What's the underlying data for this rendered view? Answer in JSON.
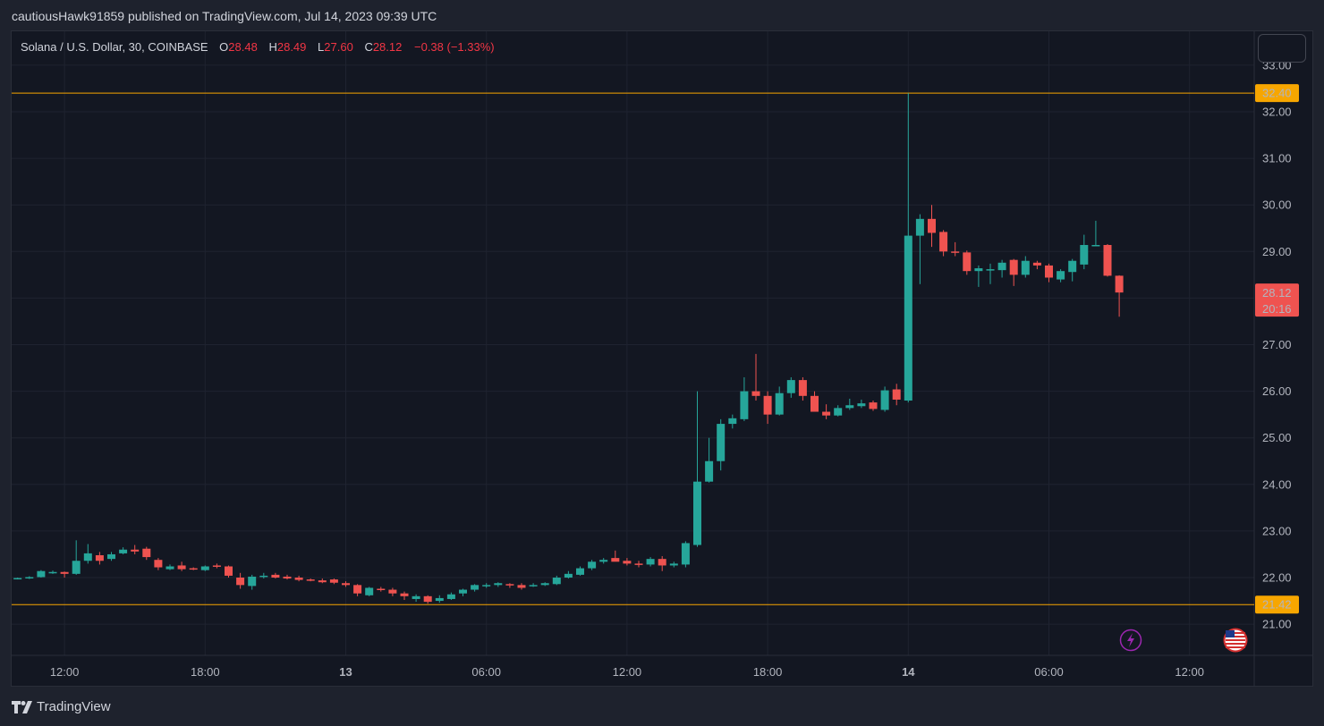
{
  "header": {
    "publisher_line": "cautiousHawk91859 published on TradingView.com, Jul 14, 2023 09:39 UTC"
  },
  "legend": {
    "symbol": "Solana / U.S. Dollar, 30, COINBASE",
    "o_label": "O",
    "o_value": "28.48",
    "h_label": "H",
    "h_value": "28.49",
    "l_label": "L",
    "l_value": "27.60",
    "c_label": "C",
    "c_value": "28.12",
    "change": "−0.38 (−1.33%)"
  },
  "footer": {
    "brand": "TradingView"
  },
  "colors": {
    "up": "#26a69a",
    "down": "#ef5350",
    "hline": "#f7a600",
    "background": "#131722",
    "grid": "#1f2330"
  },
  "icons": [
    "lightning-icon",
    "us-flag-icon",
    "tradingview-logo-icon"
  ],
  "chart_data": {
    "type": "candlestick",
    "interval": "30",
    "ylim": [
      20.3,
      33.3
    ],
    "y_ticks": [
      "21.00",
      "22.00",
      "23.00",
      "24.00",
      "25.00",
      "26.00",
      "27.00",
      "28.00",
      "29.00",
      "30.00",
      "31.00",
      "32.00",
      "33.00"
    ],
    "x_ticks": [
      {
        "bar": 4,
        "label": "12:00",
        "bold": false
      },
      {
        "bar": 16,
        "label": "18:00",
        "bold": false
      },
      {
        "bar": 28,
        "label": "13",
        "bold": true
      },
      {
        "bar": 40,
        "label": "06:00",
        "bold": false
      },
      {
        "bar": 52,
        "label": "12:00",
        "bold": false
      },
      {
        "bar": 64,
        "label": "18:00",
        "bold": false
      },
      {
        "bar": 76,
        "label": "14",
        "bold": true
      },
      {
        "bar": 88,
        "label": "06:00",
        "bold": false
      },
      {
        "bar": 100,
        "label": "12:00",
        "bold": false
      }
    ],
    "horizontal_lines": [
      {
        "value": 32.4,
        "label": "32.40"
      },
      {
        "value": 21.42,
        "label": 21.42
      }
    ],
    "last_price": {
      "value": 28.12,
      "label": "28.12",
      "countdown": "20:16"
    },
    "candles": [
      [
        21.98,
        22.0,
        21.96,
        21.99
      ],
      [
        21.99,
        22.03,
        21.97,
        22.01
      ],
      [
        22.01,
        22.16,
        22.0,
        22.14
      ],
      [
        22.1,
        22.15,
        22.08,
        22.12
      ],
      [
        22.12,
        22.13,
        22.0,
        22.08
      ],
      [
        22.08,
        22.8,
        22.06,
        22.36
      ],
      [
        22.36,
        22.72,
        22.3,
        22.52
      ],
      [
        22.48,
        22.55,
        22.28,
        22.36
      ],
      [
        22.4,
        22.55,
        22.36,
        22.5
      ],
      [
        22.52,
        22.65,
        22.5,
        22.6
      ],
      [
        22.6,
        22.7,
        22.5,
        22.56
      ],
      [
        22.62,
        22.66,
        22.38,
        22.44
      ],
      [
        22.38,
        22.42,
        22.16,
        22.22
      ],
      [
        22.18,
        22.28,
        22.16,
        22.24
      ],
      [
        22.26,
        22.34,
        22.14,
        22.18
      ],
      [
        22.2,
        22.22,
        22.16,
        22.18
      ],
      [
        22.16,
        22.26,
        22.14,
        22.24
      ],
      [
        22.26,
        22.3,
        22.2,
        22.24
      ],
      [
        22.24,
        22.26,
        22.0,
        22.04
      ],
      [
        22.0,
        22.1,
        21.76,
        21.84
      ],
      [
        21.82,
        22.06,
        21.74,
        22.02
      ],
      [
        22.02,
        22.1,
        21.98,
        22.04
      ],
      [
        22.06,
        22.1,
        21.98,
        22.0
      ],
      [
        22.02,
        22.06,
        21.96,
        21.98
      ],
      [
        22.0,
        22.04,
        21.92,
        21.95
      ],
      [
        21.96,
        21.98,
        21.92,
        21.94
      ],
      [
        21.94,
        21.98,
        21.88,
        21.9
      ],
      [
        21.96,
        21.98,
        21.86,
        21.89
      ],
      [
        21.88,
        21.92,
        21.8,
        21.84
      ],
      [
        21.84,
        21.86,
        21.6,
        21.66
      ],
      [
        21.62,
        21.8,
        21.6,
        21.78
      ],
      [
        21.76,
        21.8,
        21.7,
        21.74
      ],
      [
        21.74,
        21.78,
        21.6,
        21.66
      ],
      [
        21.66,
        21.7,
        21.52,
        21.6
      ],
      [
        21.54,
        21.64,
        21.48,
        21.6
      ],
      [
        21.6,
        21.62,
        21.44,
        21.48
      ],
      [
        21.5,
        21.62,
        21.46,
        21.56
      ],
      [
        21.54,
        21.68,
        21.52,
        21.64
      ],
      [
        21.66,
        21.76,
        21.6,
        21.74
      ],
      [
        21.74,
        21.86,
        21.7,
        21.84
      ],
      [
        21.82,
        21.88,
        21.78,
        21.84
      ],
      [
        21.84,
        21.9,
        21.8,
        21.88
      ],
      [
        21.86,
        21.88,
        21.78,
        21.84
      ],
      [
        21.84,
        21.88,
        21.74,
        21.78
      ],
      [
        21.82,
        21.88,
        21.8,
        21.84
      ],
      [
        21.84,
        21.9,
        21.82,
        21.88
      ],
      [
        21.86,
        22.04,
        21.84,
        22.0
      ],
      [
        22.0,
        22.14,
        21.98,
        22.08
      ],
      [
        22.06,
        22.24,
        22.04,
        22.2
      ],
      [
        22.2,
        22.38,
        22.16,
        22.34
      ],
      [
        22.34,
        22.42,
        22.3,
        22.38
      ],
      [
        22.42,
        22.58,
        22.36,
        22.34
      ],
      [
        22.36,
        22.42,
        22.26,
        22.3
      ],
      [
        22.3,
        22.36,
        22.22,
        22.28
      ],
      [
        22.28,
        22.44,
        22.24,
        22.4
      ],
      [
        22.4,
        22.46,
        22.14,
        22.26
      ],
      [
        22.26,
        22.34,
        22.22,
        22.3
      ],
      [
        22.28,
        22.78,
        22.22,
        22.74
      ],
      [
        22.7,
        26.0,
        22.66,
        24.06
      ],
      [
        24.06,
        25.0,
        24.04,
        24.5
      ],
      [
        24.5,
        25.4,
        24.3,
        25.3
      ],
      [
        25.3,
        25.5,
        25.2,
        25.42
      ],
      [
        25.4,
        26.3,
        25.36,
        26.0
      ],
      [
        26.0,
        26.8,
        25.8,
        25.9
      ],
      [
        25.9,
        26.0,
        25.3,
        25.5
      ],
      [
        25.5,
        26.1,
        25.48,
        25.96
      ],
      [
        25.96,
        26.3,
        25.86,
        26.24
      ],
      [
        26.24,
        26.3,
        25.8,
        25.9
      ],
      [
        25.9,
        26.0,
        25.6,
        25.56
      ],
      [
        25.56,
        25.72,
        25.4,
        25.48
      ],
      [
        25.48,
        25.7,
        25.46,
        25.64
      ],
      [
        25.64,
        25.84,
        25.6,
        25.7
      ],
      [
        25.68,
        25.82,
        25.64,
        25.74
      ],
      [
        25.76,
        25.8,
        25.58,
        25.62
      ],
      [
        25.6,
        26.1,
        25.56,
        26.02
      ],
      [
        26.04,
        26.16,
        25.7,
        25.82
      ],
      [
        25.8,
        32.4,
        25.76,
        29.34
      ],
      [
        29.34,
        29.8,
        28.3,
        29.7
      ],
      [
        29.7,
        30.0,
        29.1,
        29.4
      ],
      [
        29.42,
        29.46,
        28.9,
        29.0
      ],
      [
        29.0,
        29.2,
        28.9,
        28.98
      ],
      [
        28.98,
        29.02,
        28.5,
        28.58
      ],
      [
        28.58,
        28.7,
        28.24,
        28.64
      ],
      [
        28.62,
        28.74,
        28.3,
        28.62
      ],
      [
        28.6,
        28.82,
        28.44,
        28.76
      ],
      [
        28.82,
        28.84,
        28.26,
        28.5
      ],
      [
        28.5,
        28.9,
        28.44,
        28.8
      ],
      [
        28.76,
        28.8,
        28.62,
        28.7
      ],
      [
        28.7,
        28.74,
        28.34,
        28.44
      ],
      [
        28.4,
        28.62,
        28.34,
        28.58
      ],
      [
        28.56,
        28.84,
        28.36,
        28.8
      ],
      [
        28.72,
        29.36,
        28.62,
        29.14
      ],
      [
        29.14,
        29.66,
        29.12,
        29.14
      ],
      [
        29.14,
        29.16,
        28.46,
        28.48
      ],
      [
        28.48,
        28.49,
        27.6,
        28.12
      ]
    ]
  }
}
